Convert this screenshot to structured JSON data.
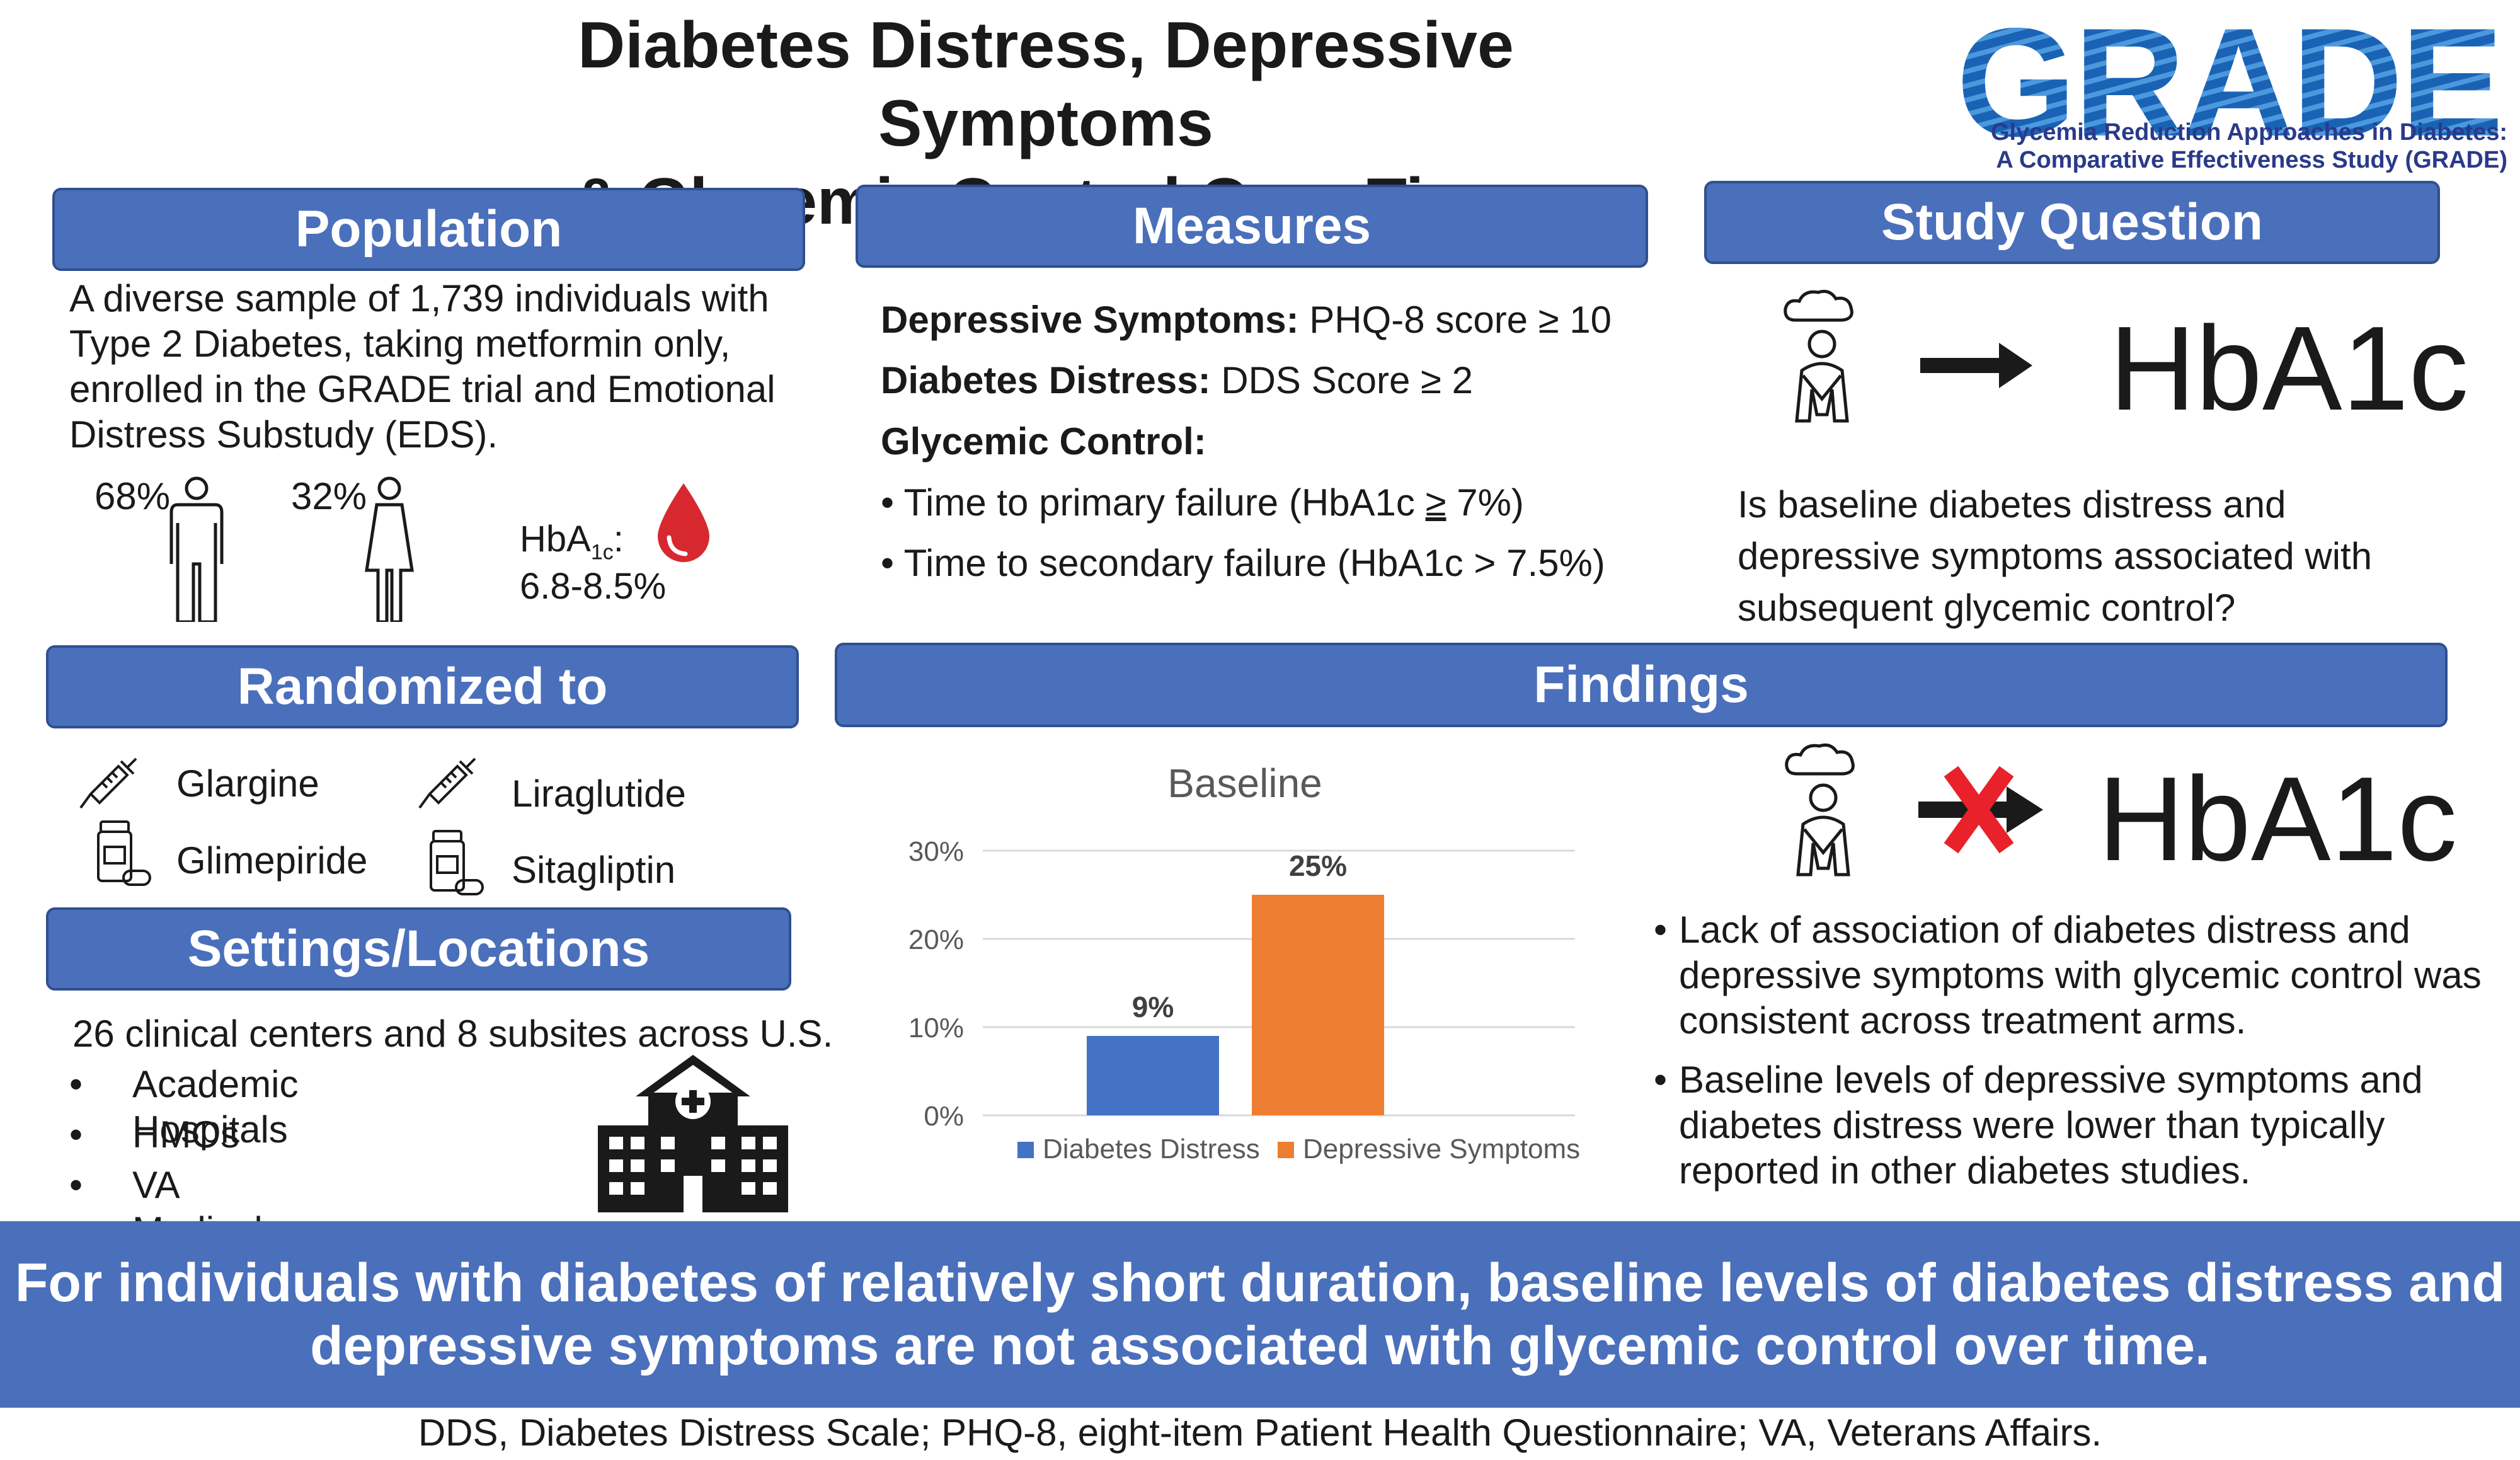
{
  "title": {
    "line1": "Diabetes Distress, Depressive Symptoms",
    "line2": "& Glycemic Control Over Time"
  },
  "logo": {
    "word": "GRADE",
    "sub1": "Glycemia Reduction Approaches in Diabetes:",
    "sub2": "A Comparative Effectiveness Study (GRADE)"
  },
  "population": {
    "header": "Population",
    "lines": [
      "A diverse sample of 1,739 individuals with",
      "Type 2 Diabetes, taking metformin only,",
      "enrolled in the GRADE trial and Emotional",
      "Distress Substudy (EDS)."
    ],
    "male_pct": "68%",
    "female_pct": "32%",
    "hba1c_label": "HbA",
    "hba1c_sub": "1c",
    "hba1c_colon": ":",
    "hba1c_range": "6.8-8.5%",
    "icons": [
      "male-person-icon",
      "female-person-icon",
      "blood-drop-icon"
    ]
  },
  "measures": {
    "header": "Measures",
    "dep_label": "Depressive Symptoms:",
    "dep_value": " PHQ-8 score ≥ 10",
    "dd_label": "Diabetes Distress:",
    "dd_value": " DDS Score ≥ 2",
    "gc_label": "Glycemic Control:",
    "bullet1_a": "Time to primary failure (HbA1c ",
    "bullet1_ge": "≥",
    "bullet1_b": " 7%)",
    "bullet2": "Time to secondary failure (HbA1c > 7.5%)"
  },
  "study_question": {
    "header": "Study Question",
    "hba1c": "HbA1c",
    "lines": [
      "Is baseline diabetes distress and",
      "depressive symptoms associated with",
      "subsequent glycemic control?"
    ]
  },
  "randomized": {
    "header": "Randomized to",
    "items": [
      "Glargine",
      "Liraglutide",
      "Glimepiride",
      "Sitagliptin"
    ]
  },
  "settings": {
    "header": "Settings/Locations",
    "intro": "26 clinical centers and 8 subsites across U.S.",
    "items": [
      "Academic Hospitals",
      "HMOs",
      "VA Medical Centers"
    ]
  },
  "findings": {
    "header": "Findings",
    "hba1c": "HbA1c",
    "bullets": [
      [
        "Lack of association of diabetes distress and",
        "depressive symptoms with glycemic control was",
        "consistent across treatment arms."
      ],
      [
        "Baseline levels of depressive symptoms and",
        "diabetes distress were lower than typically",
        "reported in other diabetes studies."
      ]
    ]
  },
  "chart_data": {
    "type": "bar",
    "title": "Baseline",
    "categories": [
      "Diabetes Distress",
      "Depressive Symptoms"
    ],
    "values": [
      9,
      25
    ],
    "data_labels": [
      "9%",
      "25%"
    ],
    "colors": [
      "#4472c4",
      "#ed7d31"
    ],
    "ylim": [
      0,
      30
    ],
    "yticks": [
      "0%",
      "10%",
      "20%",
      "30%"
    ],
    "ytick_values": [
      0,
      10,
      20,
      30
    ],
    "legend": [
      "Diabetes Distress",
      "Depressive Symptoms"
    ],
    "legend_position": "bottom",
    "grid": true
  },
  "conclusion": {
    "line1": "For individuals with diabetes of relatively short duration, baseline levels of diabetes distress and",
    "line2": "depressive symptoms are not associated with glycemic control over time."
  },
  "footnote": "DDS, Diabetes Distress Scale; PHQ-8, eight-item Patient Health Questionnaire; VA, Veterans Affairs.",
  "colors": {
    "header_blue": "#4a6fbb",
    "arrow": "#1a1a1a",
    "cross_red": "#e8212a",
    "blood_red": "#d7282f"
  }
}
